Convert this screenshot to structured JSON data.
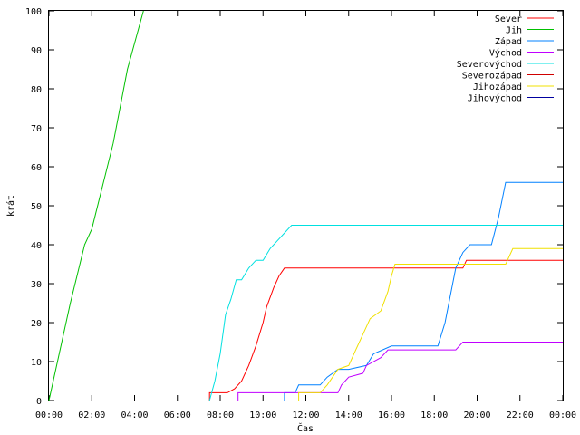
{
  "chart_data": {
    "type": "line",
    "title": "",
    "xlabel": "Čas",
    "ylabel": "krát",
    "ylim": [
      0,
      100
    ],
    "xlim": [
      "00:00",
      "24:00"
    ],
    "grid": false,
    "legend_position": "top-right",
    "x_ticks": [
      "00:00",
      "02:00",
      "04:00",
      "06:00",
      "08:00",
      "10:00",
      "12:00",
      "14:00",
      "16:00",
      "18:00",
      "20:00",
      "22:00",
      "00:00"
    ],
    "y_ticks": [
      0,
      10,
      20,
      30,
      40,
      50,
      60,
      70,
      80,
      90,
      100
    ],
    "series": [
      {
        "name": "Sever",
        "color": "#ff0000",
        "points": [
          [
            "07:30",
            0
          ],
          [
            "07:30",
            2
          ],
          [
            "08:20",
            2
          ],
          [
            "08:40",
            3
          ],
          [
            "09:00",
            5
          ],
          [
            "09:20",
            9
          ],
          [
            "09:40",
            14
          ],
          [
            "10:00",
            20
          ],
          [
            "10:10",
            24
          ],
          [
            "10:30",
            29
          ],
          [
            "10:45",
            32
          ],
          [
            "11:00",
            34
          ],
          [
            "13:00",
            34
          ],
          [
            "16:00",
            34
          ],
          [
            "19:20",
            34
          ],
          [
            "19:30",
            36
          ],
          [
            "24:00",
            36
          ]
        ]
      },
      {
        "name": "Jih",
        "color": "#00c000",
        "points": [
          [
            "00:00",
            0
          ],
          [
            "01:00",
            25
          ],
          [
            "01:40",
            40
          ],
          [
            "02:00",
            44
          ],
          [
            "03:00",
            66
          ],
          [
            "03:40",
            85
          ],
          [
            "04:25",
            100
          ]
        ]
      },
      {
        "name": "Západ",
        "color": "#0080ff",
        "points": [
          [
            "11:00",
            0
          ],
          [
            "11:00",
            2
          ],
          [
            "11:30",
            2
          ],
          [
            "11:40",
            4
          ],
          [
            "12:40",
            4
          ],
          [
            "13:00",
            6
          ],
          [
            "13:30",
            8
          ],
          [
            "14:00",
            8
          ],
          [
            "14:50",
            9
          ],
          [
            "15:10",
            12
          ],
          [
            "16:00",
            14
          ],
          [
            "18:10",
            14
          ],
          [
            "18:30",
            20
          ],
          [
            "19:00",
            34
          ],
          [
            "19:20",
            38
          ],
          [
            "19:40",
            40
          ],
          [
            "20:40",
            40
          ],
          [
            "21:00",
            47
          ],
          [
            "21:20",
            56
          ],
          [
            "24:00",
            56
          ]
        ]
      },
      {
        "name": "Východ",
        "color": "#c000ff",
        "points": [
          [
            "08:50",
            0
          ],
          [
            "08:50",
            2
          ],
          [
            "13:30",
            2
          ],
          [
            "13:40",
            4
          ],
          [
            "14:00",
            6
          ],
          [
            "14:40",
            7
          ],
          [
            "14:50",
            9
          ],
          [
            "15:30",
            11
          ],
          [
            "15:50",
            13
          ],
          [
            "19:00",
            13
          ],
          [
            "19:20",
            15
          ],
          [
            "24:00",
            15
          ]
        ]
      },
      {
        "name": "Severovýchod",
        "color": "#00e0e0",
        "points": [
          [
            "07:30",
            0
          ],
          [
            "07:45",
            5
          ],
          [
            "08:00",
            12
          ],
          [
            "08:15",
            22
          ],
          [
            "08:30",
            26
          ],
          [
            "08:45",
            31
          ],
          [
            "09:00",
            31
          ],
          [
            "09:20",
            34
          ],
          [
            "09:40",
            36
          ],
          [
            "10:00",
            36
          ],
          [
            "10:20",
            39
          ],
          [
            "10:40",
            41
          ],
          [
            "11:00",
            43
          ],
          [
            "11:20",
            45
          ],
          [
            "24:00",
            45
          ]
        ]
      },
      {
        "name": "Severozápad",
        "color": "#d00000",
        "points": []
      },
      {
        "name": "Jihozápad",
        "color": "#f0e000",
        "points": [
          [
            "11:40",
            0
          ],
          [
            "11:40",
            2
          ],
          [
            "12:40",
            2
          ],
          [
            "13:00",
            4
          ],
          [
            "13:30",
            8
          ],
          [
            "14:00",
            9
          ],
          [
            "14:20",
            13
          ],
          [
            "14:40",
            17
          ],
          [
            "15:00",
            21
          ],
          [
            "15:30",
            23
          ],
          [
            "15:50",
            28
          ],
          [
            "16:00",
            32
          ],
          [
            "16:10",
            35
          ],
          [
            "21:20",
            35
          ],
          [
            "21:40",
            39
          ],
          [
            "24:00",
            39
          ]
        ]
      },
      {
        "name": "Jihovýchod",
        "color": "#0000a0",
        "points": []
      }
    ]
  }
}
